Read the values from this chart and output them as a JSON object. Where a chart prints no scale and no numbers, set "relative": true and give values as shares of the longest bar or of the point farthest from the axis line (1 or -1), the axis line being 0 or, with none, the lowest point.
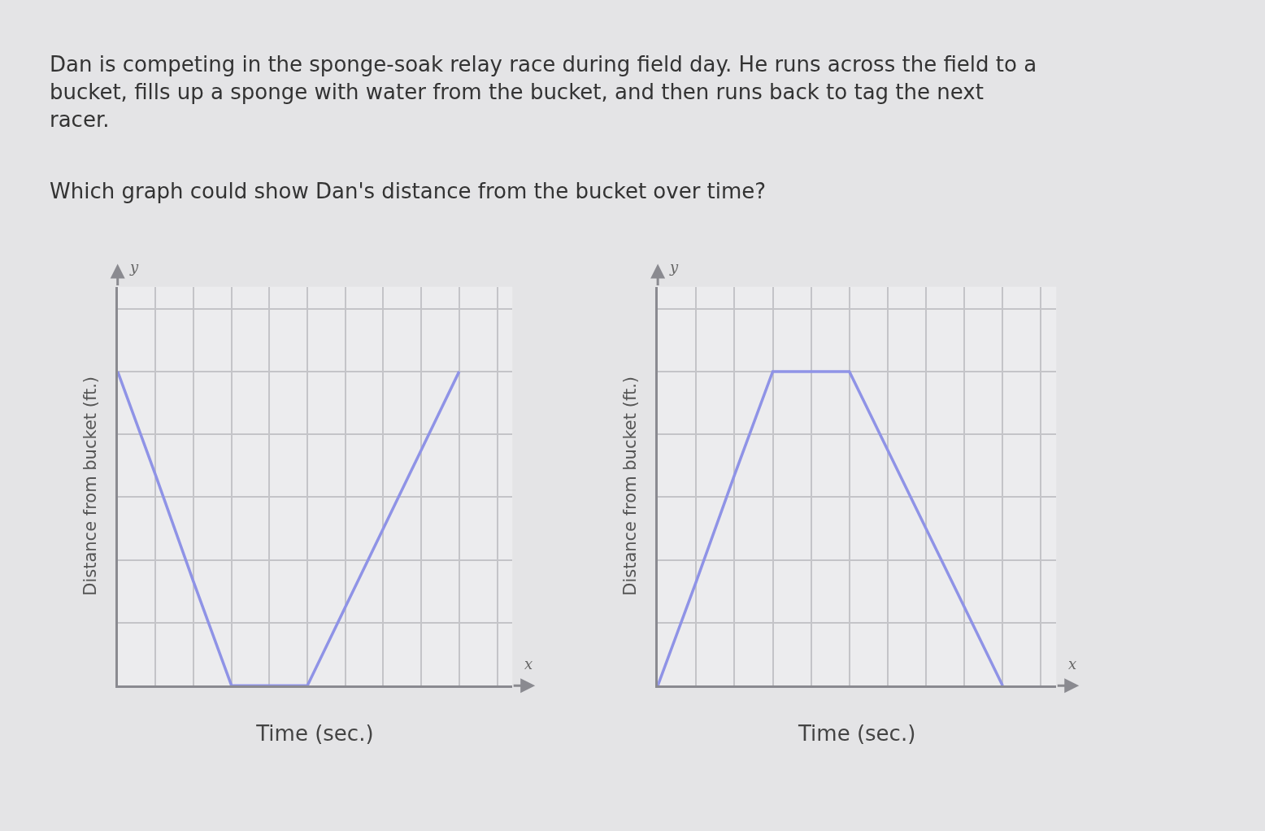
{
  "chart_data": [
    {
      "type": "line",
      "title": "Dan is competing in the sponge-soak relay race during field day. He runs across the field to a bucket, fills up a sponge with water from the bucket, and then runs back to tag the next racer.",
      "subtitle": "Which graph could show Dan's distance from the bucket over time?",
      "xlabel": "Time (sec.)",
      "ylabel": "Distance from bucket (ft.)",
      "annotations": [
        "y",
        "x"
      ],
      "categories": [
        null,
        null,
        null,
        null,
        null,
        null,
        null,
        null,
        null,
        null,
        null
      ],
      "series": [
        {
          "color": "#8f93e6",
          "values": [
            1,
            0.67,
            0.33,
            0,
            0,
            0,
            0.25,
            0.5,
            0.75,
            1,
            null
          ]
        }
      ],
      "relative": true,
      "grid": true,
      "tick_labels": false
    },
    {
      "type": "line",
      "xlabel": "Time (sec.)",
      "ylabel": "Distance from bucket (ft.)",
      "annotations": [
        "y",
        "x"
      ],
      "categories": [
        null,
        null,
        null,
        null,
        null,
        null,
        null,
        null,
        null,
        null,
        null
      ],
      "series": [
        {
          "color": "#8f93e6",
          "values": [
            0,
            0.33,
            0.67,
            1,
            1,
            1,
            0.75,
            0.5,
            0.25,
            0,
            null
          ]
        }
      ],
      "relative": true,
      "grid": true,
      "tick_labels": false
    }
  ]
}
